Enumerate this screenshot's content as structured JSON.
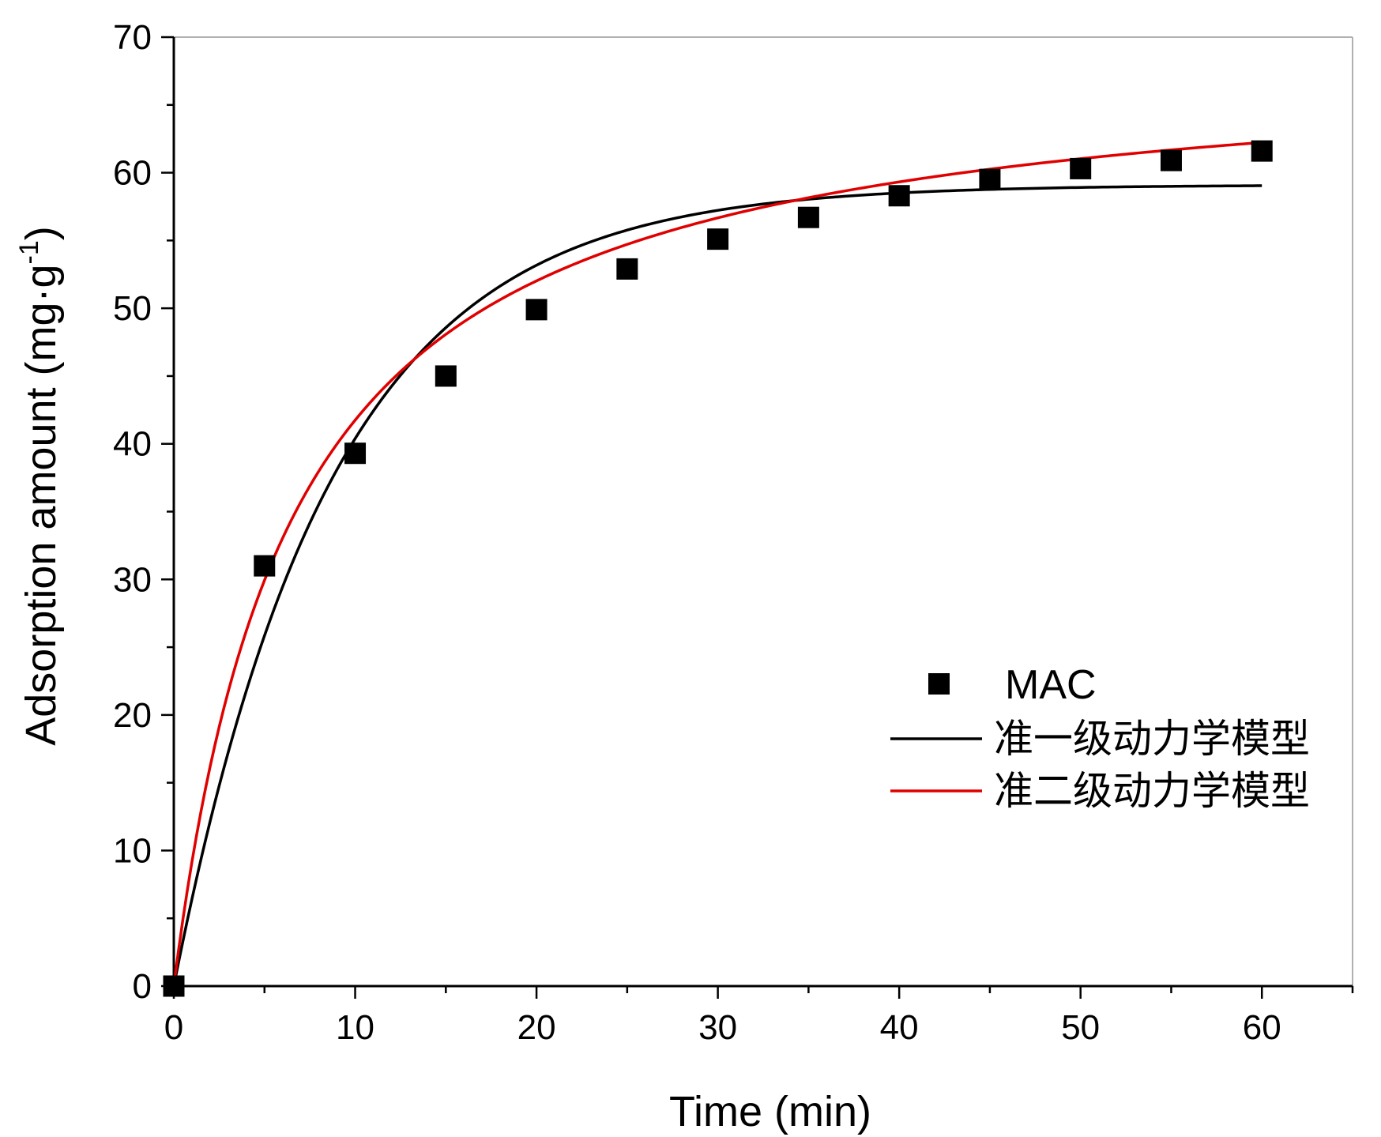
{
  "chart_data": {
    "type": "scatter",
    "title": "",
    "xlabel": "Time (min)",
    "ylabel_main": "Adsorption amount (mg·g",
    "ylabel_sup": "-1",
    "ylabel_close": ")",
    "xlim": [
      0,
      65
    ],
    "ylim": [
      0,
      70
    ],
    "x_ticks": [
      0,
      10,
      20,
      30,
      40,
      50,
      60
    ],
    "y_ticks": [
      0,
      10,
      20,
      30,
      40,
      50,
      60,
      70
    ],
    "grid": false,
    "legend_position": "lower-right",
    "series": [
      {
        "name": "MAC",
        "kind": "points",
        "color": "#000000",
        "marker": "square",
        "x": [
          0,
          5,
          10,
          15,
          20,
          25,
          30,
          35,
          40,
          45,
          50,
          55,
          60
        ],
        "y": [
          0,
          31.0,
          39.3,
          45.0,
          49.9,
          52.9,
          55.1,
          56.7,
          58.3,
          59.5,
          60.3,
          60.9,
          61.6
        ]
      },
      {
        "name": "准一级动力学模型",
        "kind": "curve",
        "model": "pseudo-first-order",
        "color": "#000000",
        "qe": 59.1,
        "k1": 0.115,
        "x_range": [
          0,
          60
        ]
      },
      {
        "name": "准二级动力学模型",
        "kind": "curve",
        "model": "pseudo-second-order",
        "color": "#e00000",
        "qe": 69.0,
        "k2": 0.00222,
        "x_range": [
          0,
          60
        ]
      }
    ]
  }
}
